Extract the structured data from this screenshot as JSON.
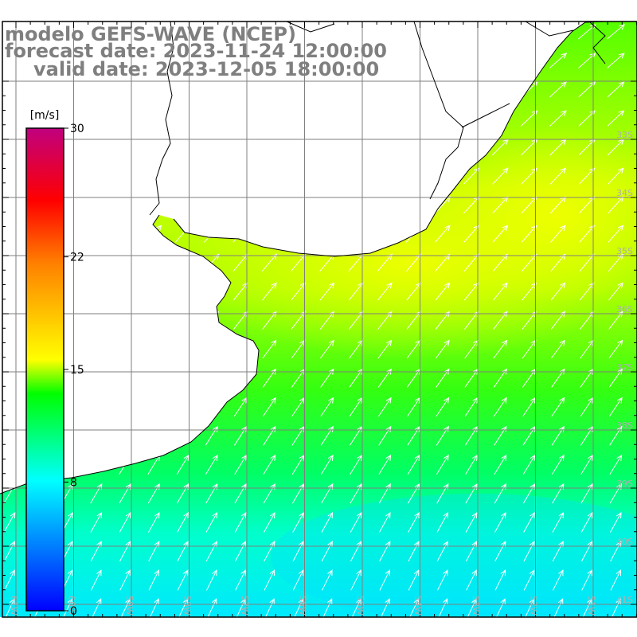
{
  "title": {
    "line1": "modelo GEFS-WAVE (NCEP)",
    "line2": "forecast date: 2023-11-24 12:00:00",
    "line3": "valid date: 2023-12-05 18:00:00"
  },
  "colorbar": {
    "unit": "[m/s]",
    "min": 0,
    "max": 30,
    "tick_labels": [
      "30",
      "22",
      "15",
      "8",
      "0"
    ],
    "tick_values": [
      30,
      22,
      15,
      8,
      0
    ],
    "colors": [
      "#0000ff",
      "#00ffff",
      "#00ff00",
      "#ffff00",
      "#ff0000",
      "#c0007f"
    ]
  },
  "axes": {
    "lat_labels": [
      "33S",
      "34S",
      "35S",
      "36S",
      "37S",
      "38S",
      "39S",
      "40S",
      "41S"
    ],
    "lat_values": [
      -33,
      -34,
      -35,
      -36,
      -37,
      -38,
      -39,
      -40,
      -41
    ],
    "lon_labels": [
      "61W",
      "60W",
      "59W",
      "58W",
      "57W",
      "56W",
      "55W",
      "54W",
      "53W",
      "52W",
      "51W"
    ],
    "lon_values": [
      -61,
      -60,
      -59,
      -58,
      -57,
      -56,
      -55,
      -54,
      -53,
      -52,
      -51
    ]
  },
  "field": {
    "variable": "wind speed",
    "shading": "color-filled grid with wind direction arrows",
    "arrow_color": "#ffffff",
    "grid_color": "#7f7f7f",
    "coast_color": "#000000",
    "land_color": "#ffffff"
  }
}
